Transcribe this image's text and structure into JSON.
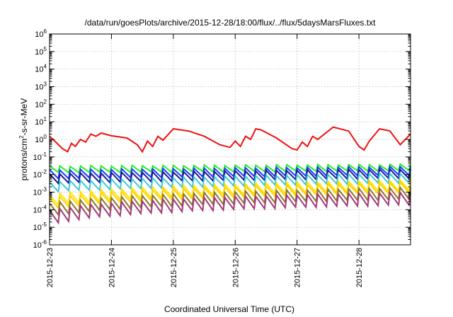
{
  "chart_data": {
    "type": "line",
    "title": "/data/run/goesPlots/archive/2015-12-28/18:00/flux/../flux/5daysMarsFluxes.txt",
    "xlabel": "Coordinated Universal Time (UTC)",
    "ylabel_parts": [
      "protons/cm",
      "2",
      "-s-sr-MeV"
    ],
    "yscale": "log",
    "ylim_exponents": [
      -6,
      6
    ],
    "ytick_base": "10",
    "ytick_exponents": [
      "-6",
      "-5",
      "-4",
      "-3",
      "-2",
      "-1",
      "0",
      "1",
      "2",
      "3",
      "4",
      "5",
      "6"
    ],
    "xlim_days": [
      "2015-12-23",
      "2015-12-28T20:00"
    ],
    "xtick_labels": [
      "2015-12-23",
      "2015-12-24",
      "2015-12-25",
      "2015-12-26",
      "2015-12-27",
      "2015-12-28"
    ],
    "grid": true,
    "series": [
      {
        "color": "#ee1111",
        "x": [
          "2015-12-23T00:00",
          "2015-12-23T02:00",
          "2015-12-23T05:00",
          "2015-12-23T07:00",
          "2015-12-23T08:30",
          "2015-12-23T10:00",
          "2015-12-23T12:00",
          "2015-12-23T14:00",
          "2015-12-23T16:00",
          "2015-12-23T18:00",
          "2015-12-23T20:00",
          "2015-12-24T00:00",
          "2015-12-24T06:00",
          "2015-12-24T10:00",
          "2015-12-24T12:00",
          "2015-12-24T14:00",
          "2015-12-24T16:00",
          "2015-12-24T18:00",
          "2015-12-24T20:00",
          "2015-12-25T00:00",
          "2015-12-25T06:00",
          "2015-12-25T12:00",
          "2015-12-25T18:00",
          "2015-12-25T22:00",
          "2015-12-26T00:00",
          "2015-12-26T02:00",
          "2015-12-26T04:00",
          "2015-12-26T06:00",
          "2015-12-26T08:00",
          "2015-12-26T10:00",
          "2015-12-26T16:00",
          "2015-12-26T22:00",
          "2015-12-27T00:00",
          "2015-12-27T02:00",
          "2015-12-27T04:00",
          "2015-12-27T06:00",
          "2015-12-27T08:00",
          "2015-12-27T14:00",
          "2015-12-27T20:00",
          "2015-12-28T00:00",
          "2015-12-28T02:00",
          "2015-12-28T04:00",
          "2015-12-28T08:00",
          "2015-12-28T12:00",
          "2015-12-28T16:00",
          "2015-12-28T20:00"
        ],
        "y": [
          1.5,
          0.8,
          0.3,
          0.2,
          0.6,
          0.4,
          1.0,
          0.7,
          2.0,
          1.5,
          2.3,
          1.6,
          1.2,
          0.5,
          0.2,
          0.8,
          0.4,
          1.5,
          0.9,
          4.0,
          3.0,
          1.5,
          0.5,
          0.35,
          0.8,
          0.4,
          1.5,
          1.0,
          4.0,
          3.5,
          1.2,
          0.3,
          0.25,
          0.7,
          0.4,
          1.5,
          1.0,
          5.0,
          3.0,
          0.4,
          0.25,
          0.8,
          4.0,
          3.0,
          0.5,
          2.0
        ]
      },
      {
        "color": "#22ee22",
        "base": 0.013,
        "amp": 2.3,
        "slope": 0.0006
      },
      {
        "color": "#1a3cff",
        "base": 0.006,
        "amp": 3.0,
        "slope": 0.0006
      },
      {
        "color": "#1a1a99",
        "base": 0.0033,
        "amp": 3.3,
        "slope": 0.0005
      },
      {
        "color": "#3fc9d8",
        "base": 0.0011,
        "amp": 3.5,
        "slope": 0.0004
      },
      {
        "color": "#ffe400",
        "base": 0.00018,
        "amp": 4.0,
        "slope": 0.00018
      },
      {
        "color": "#ffd200",
        "base": 0.00012,
        "amp": 3.8,
        "slope": 0.00014
      },
      {
        "color": "#8b7530",
        "base": 5e-05,
        "amp": 4.5,
        "slope": 6e-05
      },
      {
        "color": "#a33a78",
        "base": 1.8e-05,
        "amp": 5.0,
        "slope": 3e-05
      }
    ]
  }
}
